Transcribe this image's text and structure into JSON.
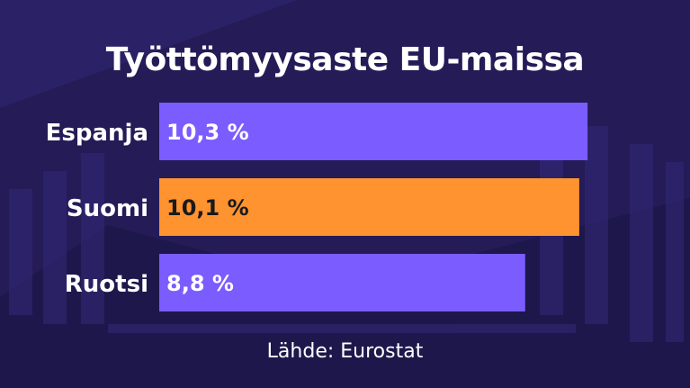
{
  "chart_data": {
    "type": "bar",
    "orientation": "horizontal",
    "title": "Työttömyysaste EU-maissa",
    "categories": [
      "Espanja",
      "Suomi",
      "Ruotsi"
    ],
    "values": [
      10.3,
      10.1,
      8.8
    ],
    "value_labels": [
      "10,3 %",
      "10,1 %",
      "8,8 %"
    ],
    "bar_colors": [
      "#7a5cff",
      "#ff9330",
      "#7a5cff"
    ],
    "xlim": [
      0,
      10.6
    ],
    "grid": false,
    "legend": "none"
  },
  "source": "Lähde: Eurostat",
  "colors": {
    "background": "#2b2166",
    "text": "#ffffff",
    "value_text_default": "#ffffff",
    "value_text_highlight": "#1a1a1a"
  }
}
